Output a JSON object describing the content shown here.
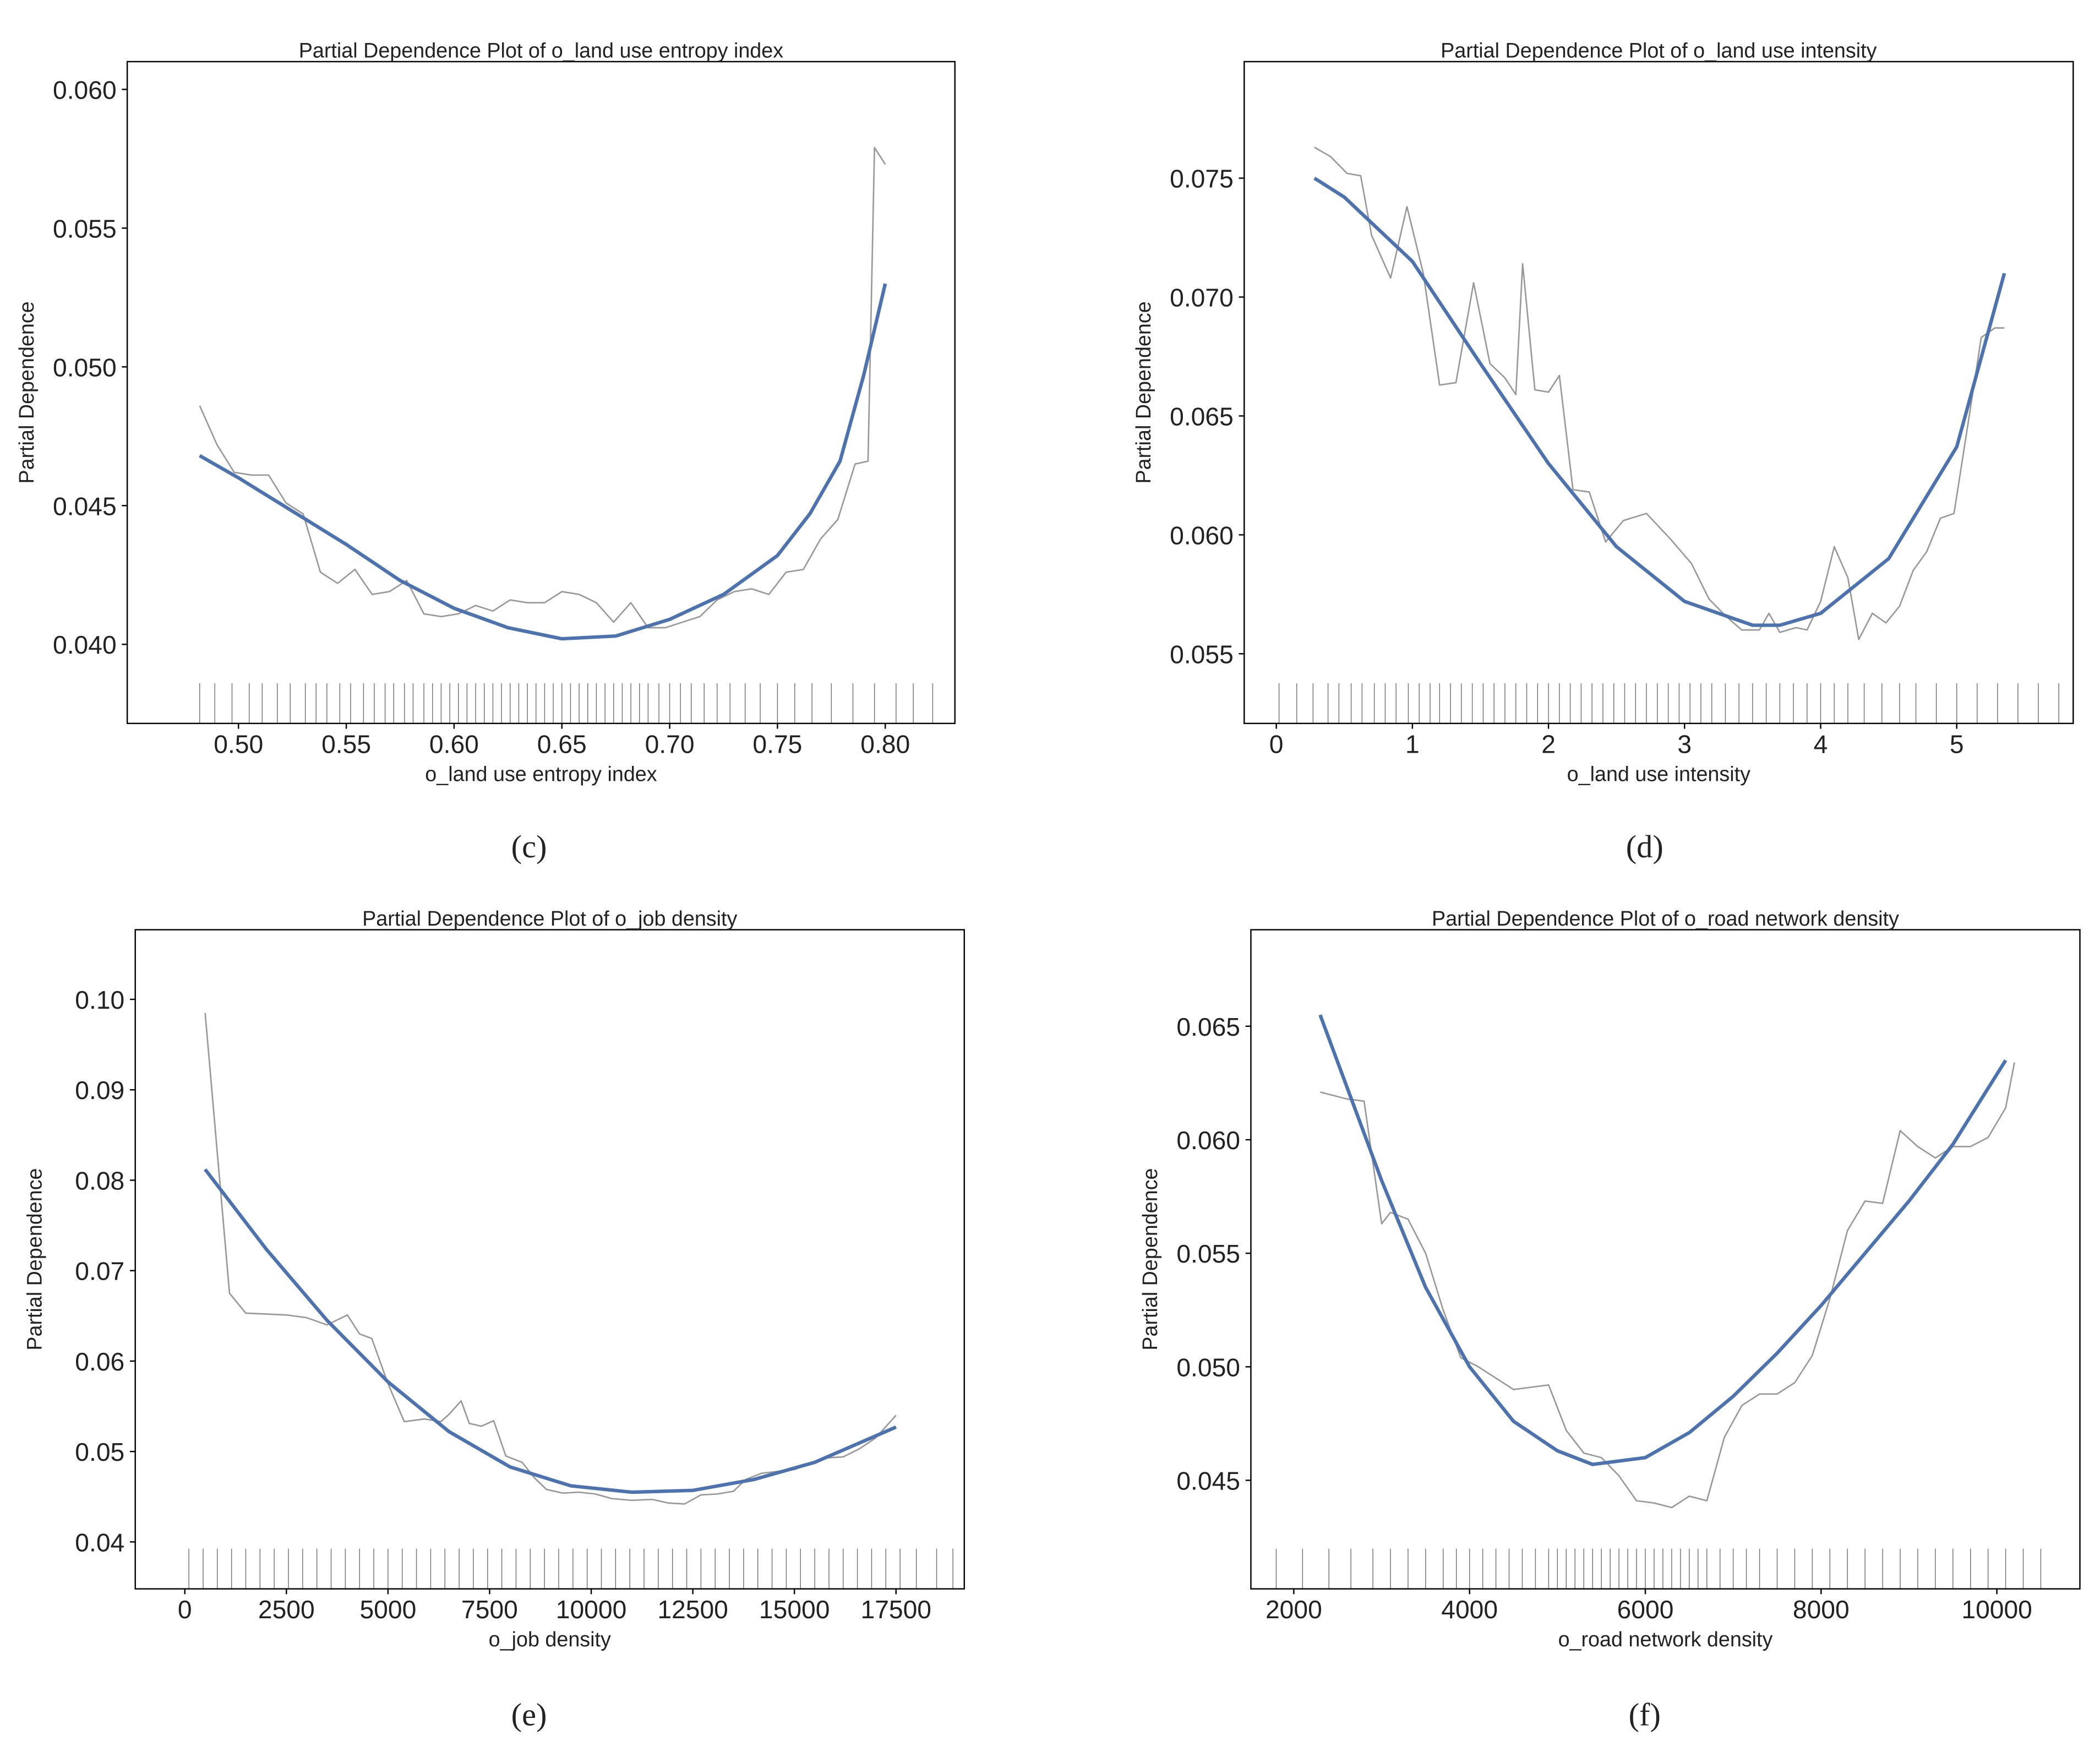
{
  "chart_data": [
    {
      "type": "line",
      "title": "Partial Dependence Plot of o_land use entropy index",
      "xlabel": "o_land use entropy index",
      "ylabel": "Partial Dependence",
      "panel": "(c)",
      "xlim": [
        0.4484,
        0.8323
      ],
      "ylim": [
        0.03715,
        0.061
      ],
      "xticks": [
        {
          "value": 0.5,
          "label": "0.50"
        },
        0.55,
        {
          "value": 0.6,
          "label": "0.60"
        },
        0.65,
        {
          "value": 0.7,
          "label": "0.70"
        },
        0.75,
        {
          "value": 0.8,
          "label": "0.80"
        }
      ],
      "yticks": [
        {
          "value": 0.04,
          "label": "0.040"
        },
        0.045,
        {
          "value": 0.05,
          "label": "0.050"
        },
        0.055,
        {
          "value": 0.06,
          "label": "0.060"
        }
      ],
      "series": [
        {
          "color": "#999999",
          "x": [
            0.482,
            0.49,
            0.498,
            0.506,
            0.514,
            0.522,
            0.53,
            0.538,
            0.546,
            0.554,
            0.562,
            0.57,
            0.578,
            0.586,
            0.594,
            0.602,
            0.61,
            0.618,
            0.626,
            0.634,
            0.642,
            0.65,
            0.658,
            0.666,
            0.674,
            0.682,
            0.69,
            0.698,
            0.706,
            0.714,
            0.722,
            0.73,
            0.738,
            0.746,
            0.754,
            0.762,
            0.77,
            0.778,
            0.786,
            0.792,
            0.795,
            0.8
          ],
          "values": [
            0.0486,
            0.0472,
            0.0462,
            0.0461,
            0.0461,
            0.0451,
            0.0447,
            0.0426,
            0.0422,
            0.0427,
            0.0418,
            0.0419,
            0.0423,
            0.0411,
            0.041,
            0.0411,
            0.0414,
            0.0412,
            0.0416,
            0.0415,
            0.0415,
            0.0419,
            0.0418,
            0.0415,
            0.0408,
            0.0415,
            0.0406,
            0.0406,
            0.0408,
            0.041,
            0.0416,
            0.0419,
            0.042,
            0.0418,
            0.0426,
            0.0427,
            0.0438,
            0.0445,
            0.0465,
            0.0466,
            0.0579,
            0.0573
          ]
        },
        {
          "color": "#4c72b0",
          "x": [
            0.482,
            0.5,
            0.525,
            0.55,
            0.575,
            0.6,
            0.625,
            0.65,
            0.675,
            0.7,
            0.725,
            0.75,
            0.765,
            0.779,
            0.79,
            0.8
          ],
          "values": [
            0.0468,
            0.046,
            0.0448,
            0.0436,
            0.0423,
            0.0413,
            0.0406,
            0.0402,
            0.0403,
            0.0409,
            0.0418,
            0.0432,
            0.0447,
            0.0466,
            0.0497,
            0.053
          ]
        }
      ],
      "rug": [
        0.482,
        0.489,
        0.497,
        0.505,
        0.511,
        0.518,
        0.524,
        0.531,
        0.536,
        0.541,
        0.547,
        0.552,
        0.558,
        0.563,
        0.568,
        0.572,
        0.577,
        0.581,
        0.586,
        0.59,
        0.594,
        0.598,
        0.602,
        0.606,
        0.61,
        0.614,
        0.618,
        0.622,
        0.626,
        0.63,
        0.634,
        0.638,
        0.642,
        0.646,
        0.65,
        0.654,
        0.658,
        0.662,
        0.666,
        0.67,
        0.674,
        0.678,
        0.682,
        0.686,
        0.69,
        0.695,
        0.7,
        0.705,
        0.71,
        0.716,
        0.722,
        0.728,
        0.735,
        0.742,
        0.75,
        0.758,
        0.766,
        0.775,
        0.785,
        0.795,
        0.805,
        0.813,
        0.822
      ]
    },
    {
      "type": "line",
      "title": "Partial Dependence Plot of o_land use intensity",
      "xlabel": "o_land use intensity",
      "ylabel": "Partial Dependence",
      "panel": "(d)",
      "xlim": [
        -0.236,
        5.856
      ],
      "ylim": [
        0.05207,
        0.0799
      ],
      "xticks": [
        0,
        1,
        2,
        3,
        4,
        5
      ],
      "yticks": [
        0.055,
        {
          "value": 0.06,
          "label": "0.060"
        },
        0.065,
        {
          "value": 0.07,
          "label": "0.070"
        },
        0.075
      ],
      "series": [
        {
          "color": "#999999",
          "x": [
            0.28,
            0.4,
            0.52,
            0.62,
            0.7,
            0.84,
            0.96,
            1.08,
            1.2,
            1.32,
            1.45,
            1.57,
            1.68,
            1.76,
            1.81,
            1.9,
            2.0,
            2.08,
            2.18,
            2.3,
            2.42,
            2.55,
            2.72,
            2.9,
            3.05,
            3.18,
            3.3,
            3.42,
            3.55,
            3.62,
            3.7,
            3.82,
            3.9,
            4.0,
            4.1,
            4.2,
            4.28,
            4.38,
            4.48,
            4.58,
            4.68,
            4.78,
            4.88,
            4.98,
            5.1,
            5.18,
            5.28,
            5.35
          ],
          "values": [
            0.0763,
            0.0759,
            0.0752,
            0.0751,
            0.0726,
            0.0708,
            0.0738,
            0.071,
            0.0663,
            0.0664,
            0.0706,
            0.0672,
            0.0666,
            0.0659,
            0.0714,
            0.0661,
            0.066,
            0.0667,
            0.0619,
            0.0618,
            0.0597,
            0.0606,
            0.0609,
            0.0598,
            0.0588,
            0.0573,
            0.0566,
            0.056,
            0.056,
            0.0567,
            0.0559,
            0.0561,
            0.056,
            0.0572,
            0.0595,
            0.0582,
            0.0556,
            0.0567,
            0.0563,
            0.057,
            0.0585,
            0.0593,
            0.0607,
            0.0609,
            0.0653,
            0.0683,
            0.0687,
            0.0687
          ]
        },
        {
          "color": "#4c72b0",
          "x": [
            0.28,
            0.5,
            1.0,
            1.5,
            2.0,
            2.5,
            3.0,
            3.5,
            3.7,
            4.0,
            4.5,
            5.0,
            5.35
          ],
          "values": [
            0.075,
            0.0742,
            0.0715,
            0.0672,
            0.063,
            0.0595,
            0.0572,
            0.0562,
            0.0562,
            0.0567,
            0.059,
            0.0637,
            0.071
          ]
        }
      ],
      "rug": [
        0.02,
        0.15,
        0.27,
        0.38,
        0.46,
        0.55,
        0.63,
        0.72,
        0.8,
        0.88,
        0.97,
        1.05,
        1.13,
        1.2,
        1.28,
        1.36,
        1.44,
        1.52,
        1.6,
        1.68,
        1.76,
        1.84,
        1.92,
        2.0,
        2.08,
        2.16,
        2.24,
        2.32,
        2.4,
        2.48,
        2.56,
        2.64,
        2.72,
        2.8,
        2.88,
        2.96,
        3.04,
        3.12,
        3.2,
        3.3,
        3.4,
        3.5,
        3.6,
        3.7,
        3.8,
        3.9,
        4.0,
        4.1,
        4.2,
        4.32,
        4.45,
        4.58,
        4.7,
        4.85,
        5.0,
        5.15,
        5.3,
        5.45,
        5.6,
        5.75
      ]
    },
    {
      "type": "line",
      "title": "Partial Dependence Plot of o_job density",
      "xlabel": "o_job density",
      "ylabel": "Partial Dependence",
      "panel": "(e)",
      "xlim": [
        -1219,
        19180
      ],
      "ylim": [
        0.03481,
        0.1077
      ],
      "xticks": [
        0,
        2500,
        5000,
        7500,
        10000,
        12500,
        15000,
        17500
      ],
      "yticks": [
        0.04,
        0.05,
        0.06,
        0.07,
        0.08,
        0.09,
        {
          "value": 0.1,
          "label": "0.10"
        }
      ],
      "series": [
        {
          "color": "#999999",
          "x": [
            500,
            1100,
            1500,
            2500,
            3000,
            3500,
            4000,
            4300,
            4600,
            5000,
            5400,
            5900,
            6300,
            6500,
            6800,
            7000,
            7300,
            7600,
            7900,
            8300,
            8600,
            8900,
            9300,
            9700,
            10100,
            10500,
            11000,
            11500,
            11900,
            12300,
            12700,
            13100,
            13500,
            13800,
            14200,
            14600,
            15000,
            15400,
            15800,
            16200,
            16600,
            17000,
            17500
          ],
          "values": [
            0.0985,
            0.0675,
            0.0653,
            0.0651,
            0.0648,
            0.064,
            0.0651,
            0.063,
            0.0625,
            0.0575,
            0.0533,
            0.0536,
            0.0533,
            0.0541,
            0.0556,
            0.0531,
            0.0528,
            0.0534,
            0.0495,
            0.0488,
            0.0471,
            0.0458,
            0.0454,
            0.0455,
            0.0453,
            0.0448,
            0.0446,
            0.0447,
            0.0443,
            0.0442,
            0.0452,
            0.0453,
            0.0456,
            0.0469,
            0.0476,
            0.0478,
            0.048,
            0.0487,
            0.0493,
            0.0494,
            0.0503,
            0.0515,
            0.054
          ]
        },
        {
          "color": "#4c72b0",
          "x": [
            500,
            2000,
            3500,
            5000,
            6500,
            8000,
            9500,
            11000,
            12500,
            14000,
            15500,
            17500
          ],
          "values": [
            0.0812,
            0.0724,
            0.0645,
            0.0577,
            0.0522,
            0.0483,
            0.0462,
            0.0455,
            0.0457,
            0.0469,
            0.0488,
            0.0527
          ]
        }
      ],
      "rug": [
        100,
        450,
        800,
        1150,
        1500,
        1850,
        2200,
        2550,
        2900,
        3250,
        3600,
        3950,
        4300,
        4650,
        5000,
        5350,
        5700,
        6050,
        6400,
        6750,
        7100,
        7450,
        7800,
        8150,
        8500,
        8850,
        9200,
        9550,
        9900,
        10250,
        10600,
        10950,
        11300,
        11650,
        12000,
        12350,
        12700,
        13050,
        13400,
        13750,
        14100,
        14450,
        14800,
        15150,
        15500,
        15850,
        16200,
        16550,
        16900,
        17250,
        17600,
        18000,
        18500,
        18900
      ]
    },
    {
      "type": "line",
      "title": "Partial Dependence Plot of o_road network density",
      "xlabel": "o_road network density",
      "ylabel": "Partial Dependence",
      "panel": "(f)",
      "xlim": [
        1512,
        10945
      ],
      "ylim": [
        0.04022,
        0.06925
      ],
      "xticks": [
        2000,
        4000,
        6000,
        8000,
        10000
      ],
      "yticks": [
        0.045,
        {
          "value": 0.05,
          "label": "0.050"
        },
        0.055,
        {
          "value": 0.06,
          "label": "0.060"
        },
        0.065
      ],
      "series": [
        {
          "color": "#999999",
          "x": [
            2300,
            2600,
            2800,
            3000,
            3100,
            3300,
            3500,
            3700,
            3900,
            4100,
            4300,
            4500,
            4700,
            4900,
            5100,
            5300,
            5500,
            5700,
            5900,
            6100,
            6300,
            6500,
            6700,
            6900,
            7100,
            7300,
            7500,
            7700,
            7900,
            8100,
            8300,
            8500,
            8700,
            8900,
            9100,
            9300,
            9500,
            9700,
            9900,
            10100,
            10200
          ],
          "values": [
            0.0621,
            0.0618,
            0.0617,
            0.0563,
            0.0568,
            0.0565,
            0.055,
            0.0525,
            0.0504,
            0.05,
            0.0495,
            0.049,
            0.0491,
            0.0492,
            0.0472,
            0.0462,
            0.046,
            0.0452,
            0.0441,
            0.044,
            0.0438,
            0.0443,
            0.0441,
            0.0469,
            0.0483,
            0.0488,
            0.0488,
            0.0493,
            0.0505,
            0.053,
            0.056,
            0.0573,
            0.0572,
            0.0604,
            0.0597,
            0.0592,
            0.0597,
            0.0597,
            0.0601,
            0.0614,
            0.0634
          ]
        },
        {
          "color": "#4c72b0",
          "x": [
            2300,
            3000,
            3500,
            4000,
            4500,
            5000,
            5400,
            6000,
            6500,
            7000,
            7500,
            8000,
            8500,
            9000,
            9500,
            10100
          ],
          "values": [
            0.0655,
            0.0582,
            0.0535,
            0.05,
            0.0476,
            0.0463,
            0.0457,
            0.046,
            0.0471,
            0.0487,
            0.0506,
            0.0527,
            0.055,
            0.0573,
            0.0598,
            0.0635
          ]
        }
      ],
      "rug": [
        1800,
        2100,
        2400,
        2650,
        2900,
        3100,
        3300,
        3500,
        3700,
        3850,
        4000,
        4150,
        4300,
        4450,
        4600,
        4750,
        4900,
        5000,
        5100,
        5200,
        5300,
        5400,
        5500,
        5600,
        5700,
        5800,
        5900,
        6000,
        6100,
        6200,
        6300,
        6400,
        6500,
        6600,
        6700,
        6850,
        7000,
        7150,
        7300,
        7500,
        7700,
        7900,
        8100,
        8300,
        8500,
        8700,
        8900,
        9100,
        9300,
        9500,
        9700,
        9900,
        10100,
        10300,
        10500
      ]
    }
  ]
}
